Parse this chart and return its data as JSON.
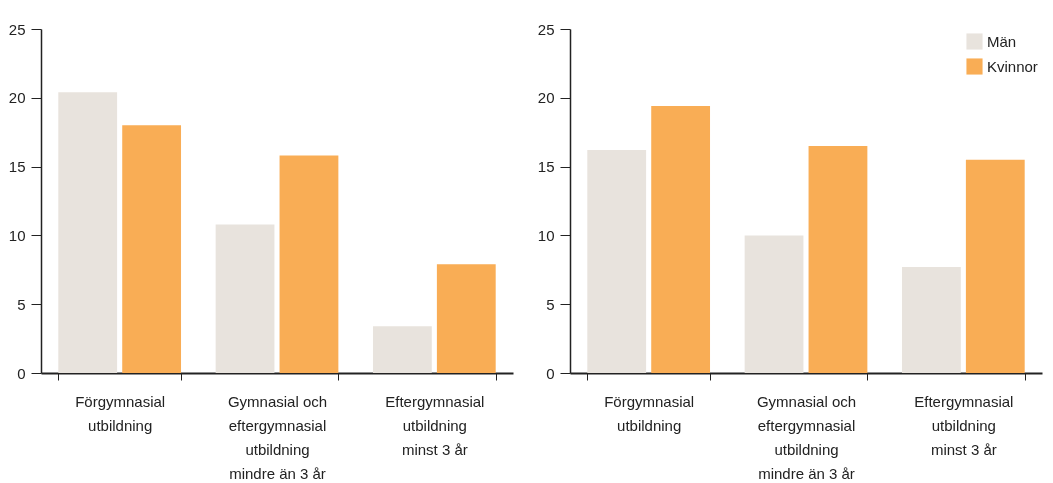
{
  "chart_data": [
    {
      "type": "bar",
      "categories": [
        "Förgymnasial utbildning",
        "Gymnasial och eftergymnasial utbildning mindre än 3 år",
        "Eftergymnasial utbildning minst 3 år"
      ],
      "series": [
        {
          "color": "#e8e3dd",
          "values": [
            20.4,
            10.8,
            3.4
          ]
        },
        {
          "color": "#f9ad55",
          "values": [
            18.0,
            15.8,
            7.9
          ]
        }
      ],
      "ylim": [
        0,
        25
      ],
      "yticks": [
        0,
        5,
        10,
        15,
        20,
        25
      ],
      "grid": false
    },
    {
      "type": "bar",
      "categories": [
        "Förgymnasial utbildning",
        "Gymnasial och eftergymnasial utbildning mindre än 3 år",
        "Eftergymnasial utbildning minst 3 år"
      ],
      "series": [
        {
          "name": "Män",
          "color": "#e8e3dd",
          "values": [
            16.2,
            10.0,
            7.7
          ]
        },
        {
          "name": "Kvinnor",
          "color": "#f9ad55",
          "values": [
            19.4,
            16.5,
            15.5
          ]
        }
      ],
      "ylim": [
        0,
        25
      ],
      "yticks": [
        0,
        5,
        10,
        15,
        20,
        25
      ],
      "grid": false,
      "legend": "top right"
    }
  ]
}
